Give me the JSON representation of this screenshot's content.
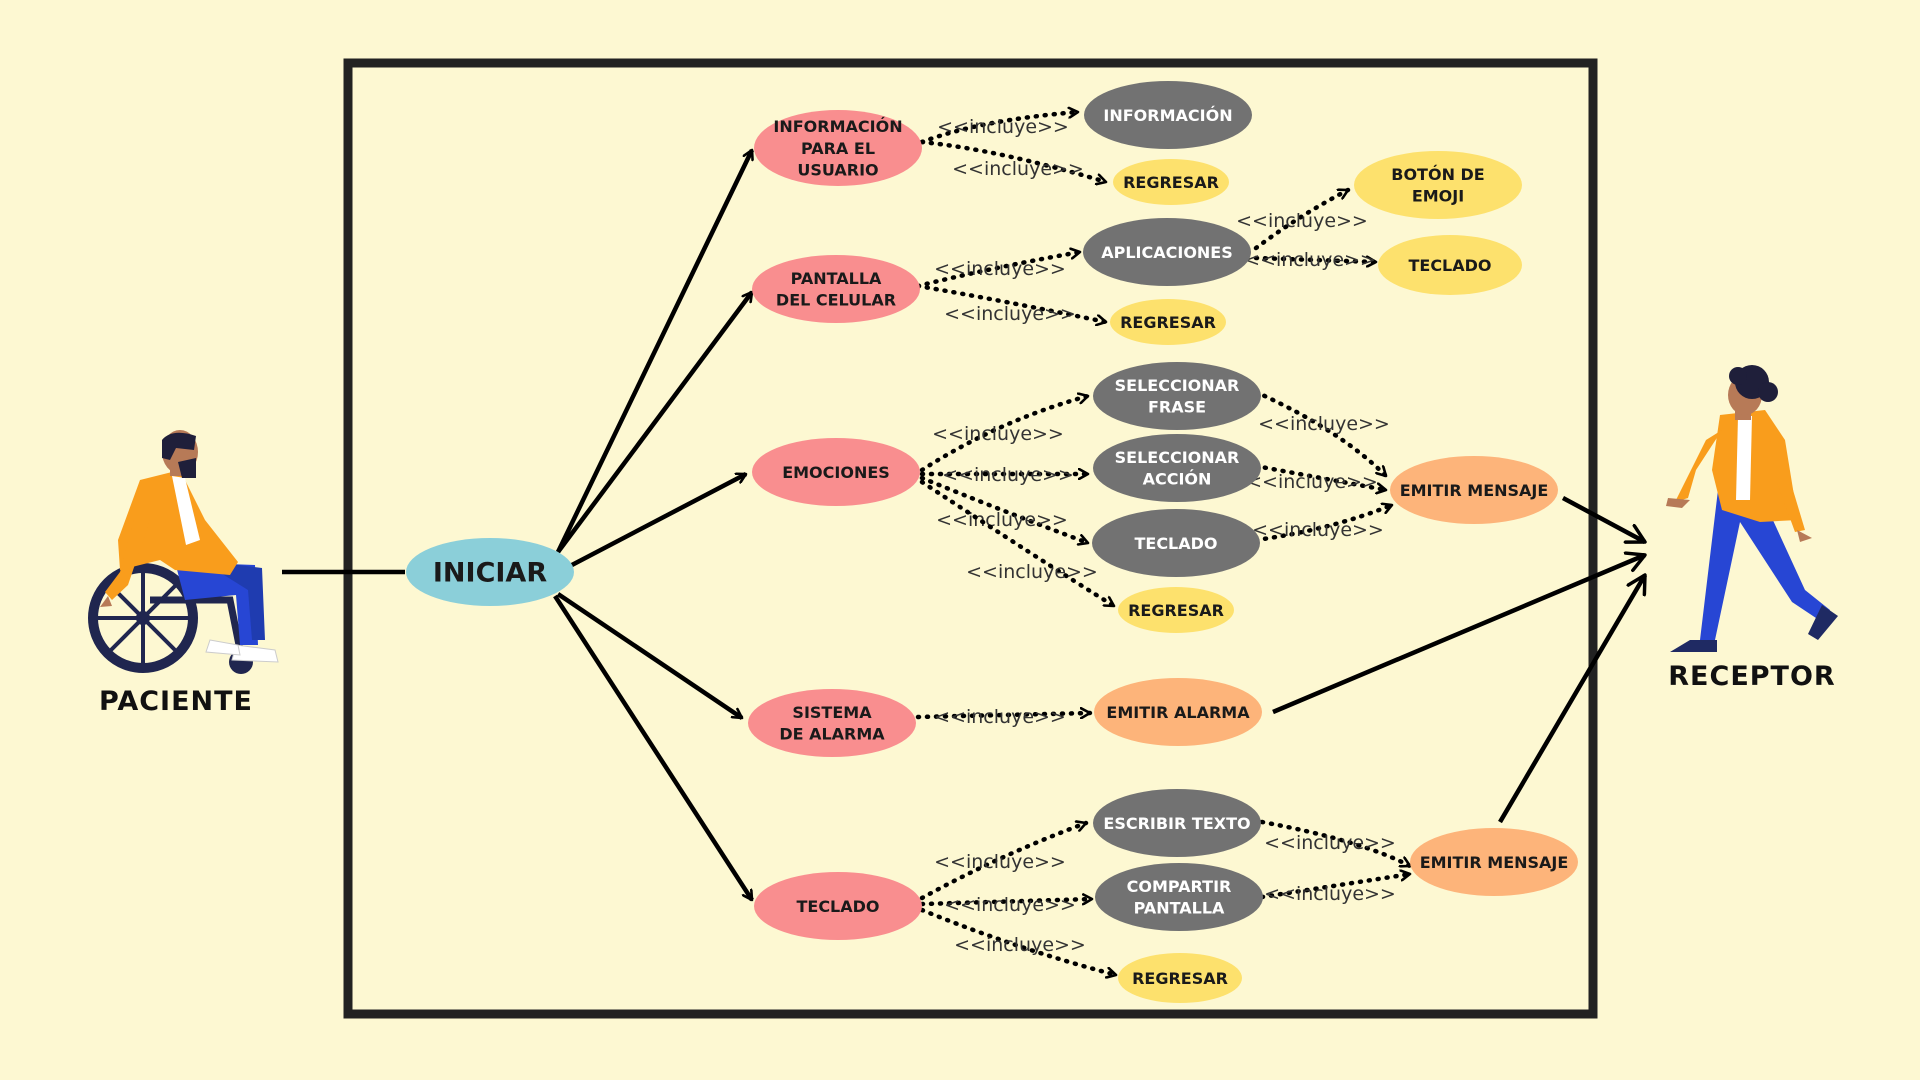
{
  "colors": {
    "background": "#fdf8d2",
    "pink": "#f98e8f",
    "gray": "#727272",
    "yellow": "#fde16d",
    "orange": "#fdb47a",
    "teal": "#8bcfd9",
    "frame": "#222222"
  },
  "actors": {
    "paciente": "PACIENTE",
    "receptor": "RECEPTOR"
  },
  "include_label": "<<incluye>>",
  "nodes": {
    "iniciar": "INICIAR",
    "info_usuario": [
      "INFORMACIÓN",
      "PARA EL",
      "USUARIO"
    ],
    "informacion": [
      "INFORMACIÓN"
    ],
    "regresar1": [
      "REGRESAR"
    ],
    "pantalla_celular": [
      "PANTALLA",
      "DEL CELULAR"
    ],
    "aplicaciones": [
      "APLICACIONES"
    ],
    "boton_emoji": [
      "BOTÓN DE",
      "EMOJI"
    ],
    "teclado_app": [
      "TECLADO"
    ],
    "regresar2": [
      "REGRESAR"
    ],
    "emociones": [
      "EMOCIONES"
    ],
    "seleccionar_frase": [
      "SELECCIONAR",
      "FRASE"
    ],
    "seleccionar_accion": [
      "SELECCIONAR",
      "ACCIÓN"
    ],
    "teclado_emo": [
      "TECLADO"
    ],
    "regresar3": [
      "REGRESAR"
    ],
    "emitir_mensaje1": [
      "EMITIR MENSAJE"
    ],
    "sistema_alarma": [
      "SISTEMA",
      "DE ALARMA"
    ],
    "emitir_alarma": [
      "EMITIR ALARMA"
    ],
    "teclado": [
      "TECLADO"
    ],
    "escribir_texto": [
      "ESCRIBIR TEXTO"
    ],
    "compartir_pantalla": [
      "COMPARTIR",
      "PANTALLA"
    ],
    "regresar4": [
      "REGRESAR"
    ],
    "emitir_mensaje2": [
      "EMITIR MENSAJE"
    ]
  }
}
